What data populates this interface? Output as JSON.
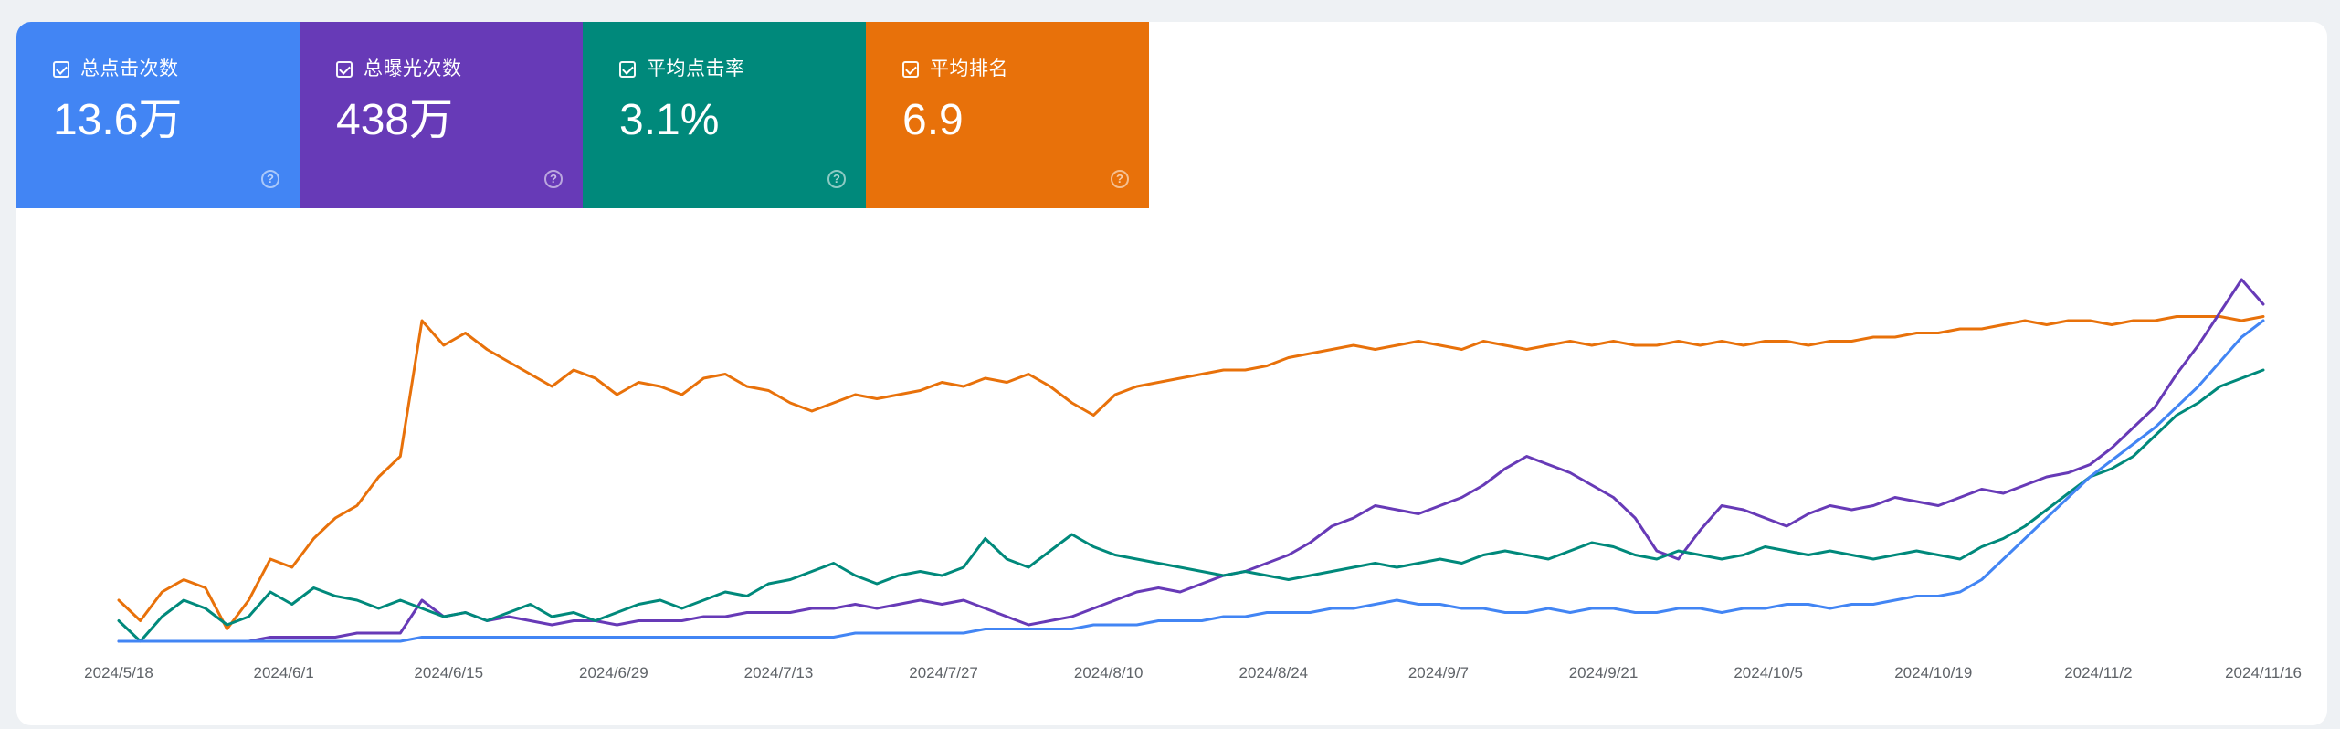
{
  "metrics": [
    {
      "label": "总点击次数",
      "value": "13.6万",
      "color": "#4285f4",
      "icon": "checked-checkbox-icon"
    },
    {
      "label": "总曝光次数",
      "value": "438万",
      "color": "#673ab7",
      "icon": "checked-checkbox-icon"
    },
    {
      "label": "平均点击率",
      "value": "3.1%",
      "color": "#00897b",
      "icon": "checked-checkbox-icon"
    },
    {
      "label": "平均排名",
      "value": "6.9",
      "color": "#e8710a",
      "icon": "checked-checkbox-icon"
    }
  ],
  "help_icon": "help-circle-icon",
  "chart_data": {
    "type": "line",
    "x_tick_labels": [
      "2024/5/18",
      "2024/6/1",
      "2024/6/15",
      "2024/6/29",
      "2024/7/13",
      "2024/7/27",
      "2024/8/10",
      "2024/8/24",
      "2024/9/7",
      "2024/9/21",
      "2024/10/5",
      "2024/10/19",
      "2024/11/2",
      "2024/11/16"
    ],
    "x_range": [
      "2024/5/18",
      "2024/11/16"
    ],
    "normalized_scale": true,
    "grid": false,
    "legend": "metric-cards-top",
    "series": [
      {
        "name": "平均排名",
        "color": "#e8710a",
        "values": [
          0.1,
          0.05,
          0.12,
          0.15,
          0.13,
          0.03,
          0.1,
          0.2,
          0.18,
          0.25,
          0.3,
          0.33,
          0.4,
          0.45,
          0.78,
          0.72,
          0.75,
          0.71,
          0.68,
          0.65,
          0.62,
          0.66,
          0.64,
          0.6,
          0.63,
          0.62,
          0.6,
          0.64,
          0.65,
          0.62,
          0.61,
          0.58,
          0.56,
          0.58,
          0.6,
          0.59,
          0.6,
          0.61,
          0.63,
          0.62,
          0.64,
          0.63,
          0.65,
          0.62,
          0.58,
          0.55,
          0.6,
          0.62,
          0.63,
          0.64,
          0.65,
          0.66,
          0.66,
          0.67,
          0.69,
          0.7,
          0.71,
          0.72,
          0.71,
          0.72,
          0.73,
          0.72,
          0.71,
          0.73,
          0.72,
          0.71,
          0.72,
          0.73,
          0.72,
          0.73,
          0.72,
          0.72,
          0.73,
          0.72,
          0.73,
          0.72,
          0.73,
          0.73,
          0.72,
          0.73,
          0.73,
          0.74,
          0.74,
          0.75,
          0.75,
          0.76,
          0.76,
          0.77,
          0.78,
          0.77,
          0.78,
          0.78,
          0.77,
          0.78,
          0.78,
          0.79,
          0.79,
          0.79,
          0.78,
          0.79
        ]
      },
      {
        "name": "总曝光次数",
        "color": "#673ab7",
        "values": [
          0.0,
          0.0,
          0.0,
          0.0,
          0.0,
          0.0,
          0.0,
          0.01,
          0.01,
          0.01,
          0.01,
          0.02,
          0.02,
          0.02,
          0.1,
          0.06,
          0.07,
          0.05,
          0.06,
          0.05,
          0.04,
          0.05,
          0.05,
          0.04,
          0.05,
          0.05,
          0.05,
          0.06,
          0.06,
          0.07,
          0.07,
          0.07,
          0.08,
          0.08,
          0.09,
          0.08,
          0.09,
          0.1,
          0.09,
          0.1,
          0.08,
          0.06,
          0.04,
          0.05,
          0.06,
          0.08,
          0.1,
          0.12,
          0.13,
          0.12,
          0.14,
          0.16,
          0.17,
          0.19,
          0.21,
          0.24,
          0.28,
          0.3,
          0.33,
          0.32,
          0.31,
          0.33,
          0.35,
          0.38,
          0.42,
          0.45,
          0.43,
          0.41,
          0.38,
          0.35,
          0.3,
          0.22,
          0.2,
          0.27,
          0.33,
          0.32,
          0.3,
          0.28,
          0.31,
          0.33,
          0.32,
          0.33,
          0.35,
          0.34,
          0.33,
          0.35,
          0.37,
          0.36,
          0.38,
          0.4,
          0.41,
          0.43,
          0.47,
          0.52,
          0.57,
          0.65,
          0.72,
          0.8,
          0.88,
          0.82
        ]
      },
      {
        "name": "平均点击率",
        "color": "#00897b",
        "values": [
          0.05,
          0.0,
          0.06,
          0.1,
          0.08,
          0.04,
          0.06,
          0.12,
          0.09,
          0.13,
          0.11,
          0.1,
          0.08,
          0.1,
          0.08,
          0.06,
          0.07,
          0.05,
          0.07,
          0.09,
          0.06,
          0.07,
          0.05,
          0.07,
          0.09,
          0.1,
          0.08,
          0.1,
          0.12,
          0.11,
          0.14,
          0.15,
          0.17,
          0.19,
          0.16,
          0.14,
          0.16,
          0.17,
          0.16,
          0.18,
          0.25,
          0.2,
          0.18,
          0.22,
          0.26,
          0.23,
          0.21,
          0.2,
          0.19,
          0.18,
          0.17,
          0.16,
          0.17,
          0.16,
          0.15,
          0.16,
          0.17,
          0.18,
          0.19,
          0.18,
          0.19,
          0.2,
          0.19,
          0.21,
          0.22,
          0.21,
          0.2,
          0.22,
          0.24,
          0.23,
          0.21,
          0.2,
          0.22,
          0.21,
          0.2,
          0.21,
          0.23,
          0.22,
          0.21,
          0.22,
          0.21,
          0.2,
          0.21,
          0.22,
          0.21,
          0.2,
          0.23,
          0.25,
          0.28,
          0.32,
          0.36,
          0.4,
          0.42,
          0.45,
          0.5,
          0.55,
          0.58,
          0.62,
          0.64,
          0.66
        ]
      },
      {
        "name": "总点击次数",
        "color": "#4285f4",
        "values": [
          0.0,
          0.0,
          0.0,
          0.0,
          0.0,
          0.0,
          0.0,
          0.0,
          0.0,
          0.0,
          0.0,
          0.0,
          0.0,
          0.0,
          0.01,
          0.01,
          0.01,
          0.01,
          0.01,
          0.01,
          0.01,
          0.01,
          0.01,
          0.01,
          0.01,
          0.01,
          0.01,
          0.01,
          0.01,
          0.01,
          0.01,
          0.01,
          0.01,
          0.01,
          0.02,
          0.02,
          0.02,
          0.02,
          0.02,
          0.02,
          0.03,
          0.03,
          0.03,
          0.03,
          0.03,
          0.04,
          0.04,
          0.04,
          0.05,
          0.05,
          0.05,
          0.06,
          0.06,
          0.07,
          0.07,
          0.07,
          0.08,
          0.08,
          0.09,
          0.1,
          0.09,
          0.09,
          0.08,
          0.08,
          0.07,
          0.07,
          0.08,
          0.07,
          0.08,
          0.08,
          0.07,
          0.07,
          0.08,
          0.08,
          0.07,
          0.08,
          0.08,
          0.09,
          0.09,
          0.08,
          0.09,
          0.09,
          0.1,
          0.11,
          0.11,
          0.12,
          0.15,
          0.2,
          0.25,
          0.3,
          0.35,
          0.4,
          0.44,
          0.48,
          0.52,
          0.57,
          0.62,
          0.68,
          0.74,
          0.78
        ]
      }
    ]
  }
}
